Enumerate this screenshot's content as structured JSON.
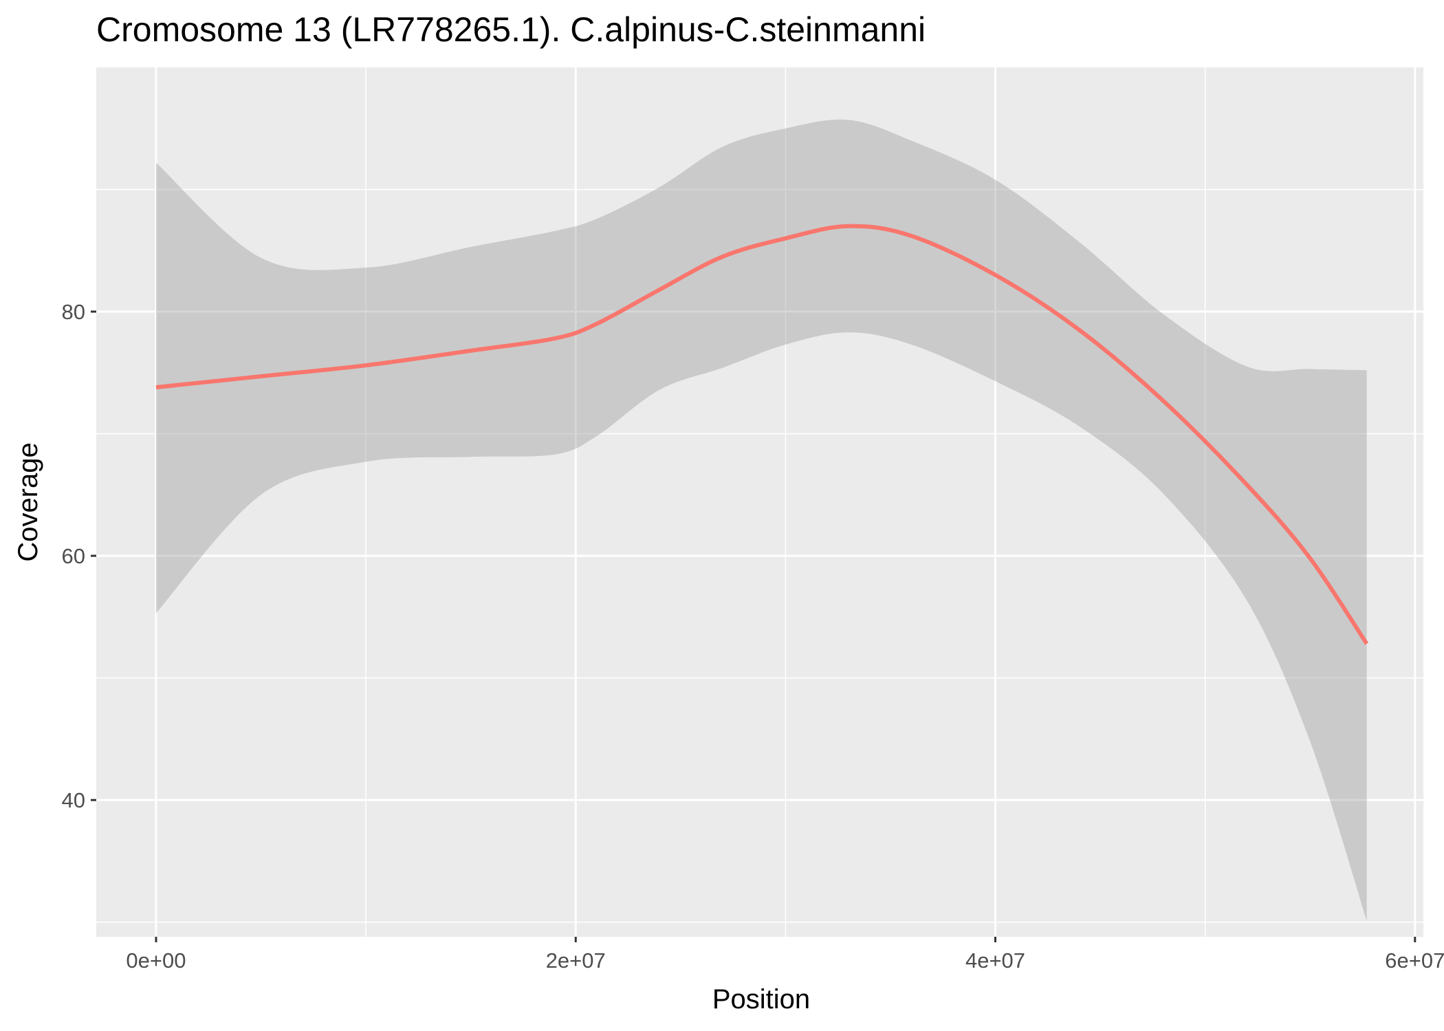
{
  "chart_data": {
    "type": "line",
    "title": "Cromosome 13 (LR778265.1). C.alpinus-C.steinmanni",
    "xlabel": "Position",
    "ylabel": "Coverage",
    "xlim": [
      -2850000,
      60400000
    ],
    "ylim": [
      28.8,
      100
    ],
    "x_ticks": [
      {
        "value": 0,
        "label": "0e+00"
      },
      {
        "value": 20000000,
        "label": "2e+07"
      },
      {
        "value": 40000000,
        "label": "4e+07"
      },
      {
        "value": 60000000,
        "label": "6e+07"
      }
    ],
    "x_minor_ticks": [
      10000000,
      30000000,
      50000000
    ],
    "y_ticks": [
      {
        "value": 40,
        "label": "40"
      },
      {
        "value": 60,
        "label": "60"
      },
      {
        "value": 80,
        "label": "80"
      }
    ],
    "y_minor_ticks": [
      30,
      50,
      70,
      90
    ],
    "grid": true,
    "legend": "none",
    "series": [
      {
        "color": "#F8766D",
        "ribbon_color": "#999999",
        "x": [
          0,
          5000000,
          10000000,
          15000000,
          19000000,
          21000000,
          24000000,
          27000000,
          30000000,
          33000000,
          36000000,
          40000000,
          44000000,
          48000000,
          52000000,
          55000000,
          57700000
        ],
        "values": [
          73.8,
          74.7,
          75.6,
          76.8,
          77.8,
          79.0,
          81.8,
          84.5,
          86.0,
          87.0,
          86.2,
          83.0,
          78.5,
          72.7,
          65.8,
          59.8,
          52.8
        ],
        "upper": [
          92.2,
          84.4,
          83.6,
          85.3,
          86.6,
          87.6,
          90.2,
          93.5,
          95.0,
          95.7,
          94.0,
          90.8,
          85.7,
          79.8,
          75.5,
          75.3,
          75.2
        ],
        "lower": [
          55.3,
          65.0,
          67.7,
          68.1,
          68.3,
          69.8,
          73.6,
          75.4,
          77.3,
          78.3,
          77.3,
          74.3,
          70.6,
          65.1,
          56.3,
          44.8,
          30.1
        ]
      }
    ]
  }
}
